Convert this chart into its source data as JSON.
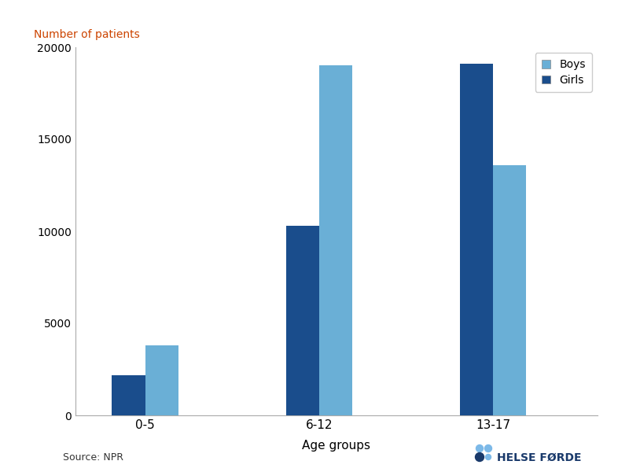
{
  "categories": [
    "0-5",
    "6-12",
    "13-17"
  ],
  "boys_values": [
    2200,
    10300,
    19100
  ],
  "girls_values": [
    3800,
    19000,
    13600
  ],
  "boys_color": "#6aafd6",
  "girls_color": "#1a4d8c",
  "ylabel": "Number of patients",
  "xlabel": "Age groups",
  "ylim": [
    0,
    20000
  ],
  "yticks": [
    0,
    5000,
    10000,
    15000,
    20000
  ],
  "source_text": "Source: NPR",
  "bar_width": 0.38,
  "background_color": "#ffffff",
  "ylabel_color": "#cc4400",
  "dark_blue": "#1a3a6b",
  "light_blue": "#7cb9e8",
  "helse_forde_text": "HELSE FØRDE"
}
